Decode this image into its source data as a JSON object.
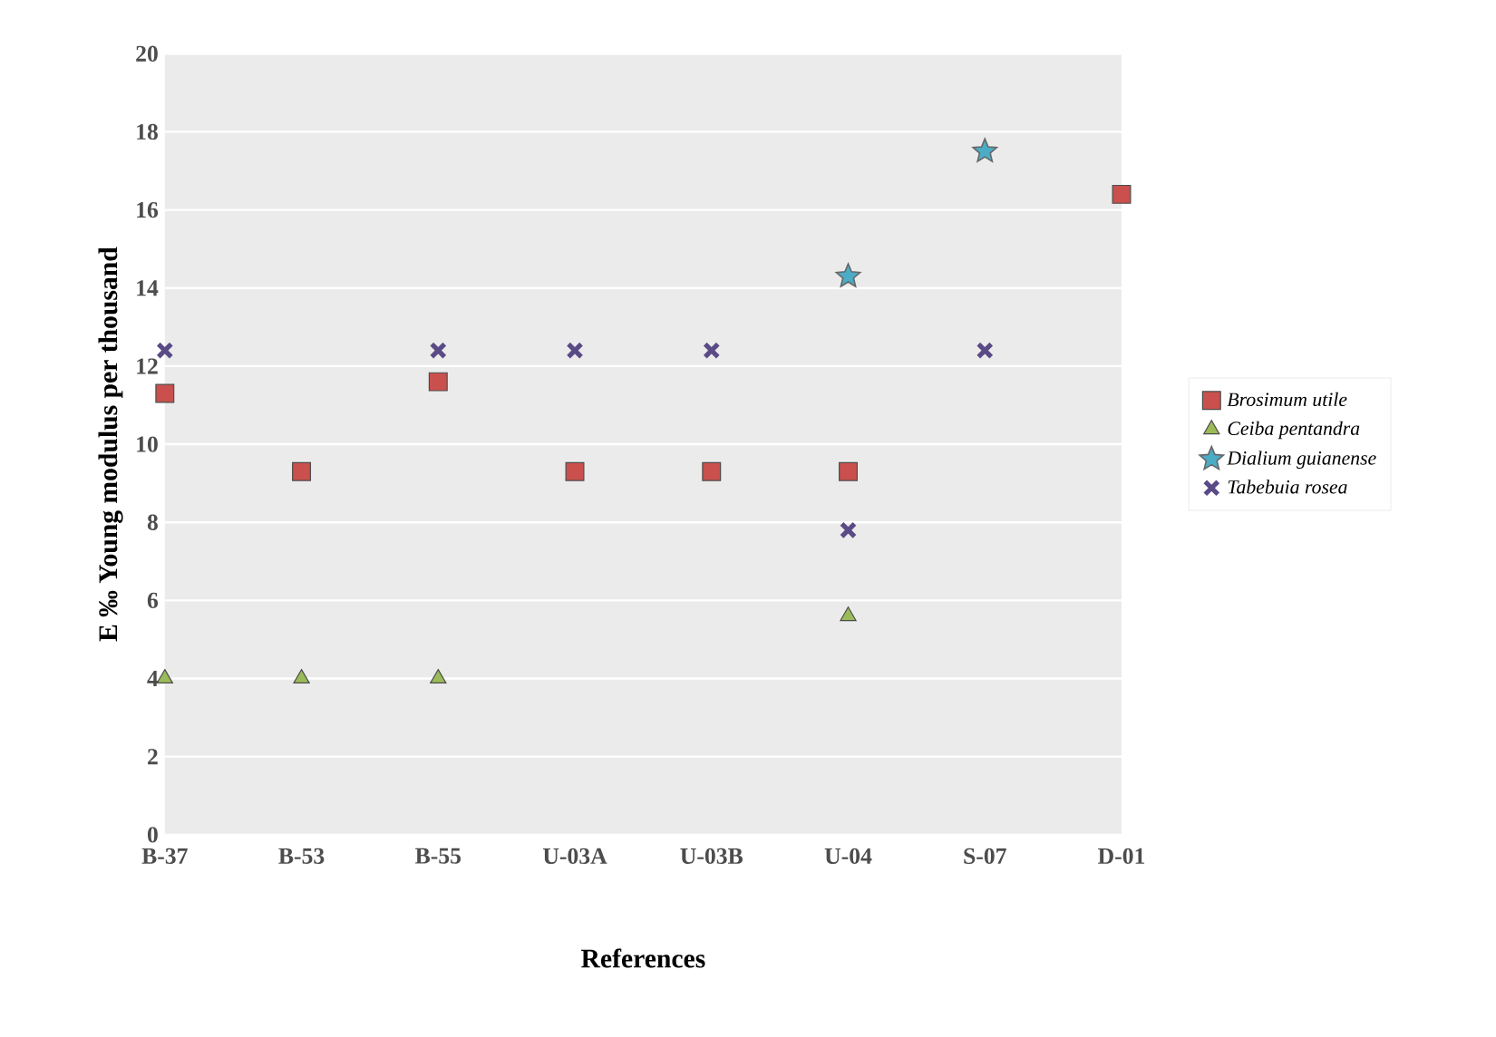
{
  "chart_data": {
    "type": "scatter",
    "xlabel": "References",
    "ylabel": "E ‰ Young modulus per thousand",
    "categories": [
      "B-37",
      "B-53",
      "B-55",
      "U-03A",
      "U-03B",
      "U-04",
      "S-07",
      "D-01"
    ],
    "series": [
      {
        "name": "Brosimum utile",
        "color": "#c9504c",
        "marker": "square",
        "values": [
          11.3,
          9.3,
          11.6,
          9.3,
          9.3,
          9.3,
          null,
          16.4
        ]
      },
      {
        "name": "Ceiba pentandra",
        "color": "#9bbb59",
        "marker": "triangle",
        "values": [
          4,
          4,
          4,
          null,
          null,
          5.6,
          null,
          null
        ]
      },
      {
        "name": "Dialium guianense",
        "color": "#4bacc6",
        "marker": "star",
        "values": [
          null,
          null,
          null,
          null,
          null,
          14.3,
          17.5,
          null
        ]
      },
      {
        "name": "Tabebuia rosea",
        "color": "#5a4a86",
        "marker": "cross",
        "values": [
          12.4,
          null,
          12.4,
          12.4,
          12.4,
          7.8,
          12.4,
          null
        ]
      }
    ],
    "ylim": [
      0,
      20
    ],
    "yticks": [
      0,
      2,
      4,
      6,
      8,
      10,
      12,
      14,
      16,
      18,
      20
    ],
    "grid": "y",
    "legend": "right"
  }
}
